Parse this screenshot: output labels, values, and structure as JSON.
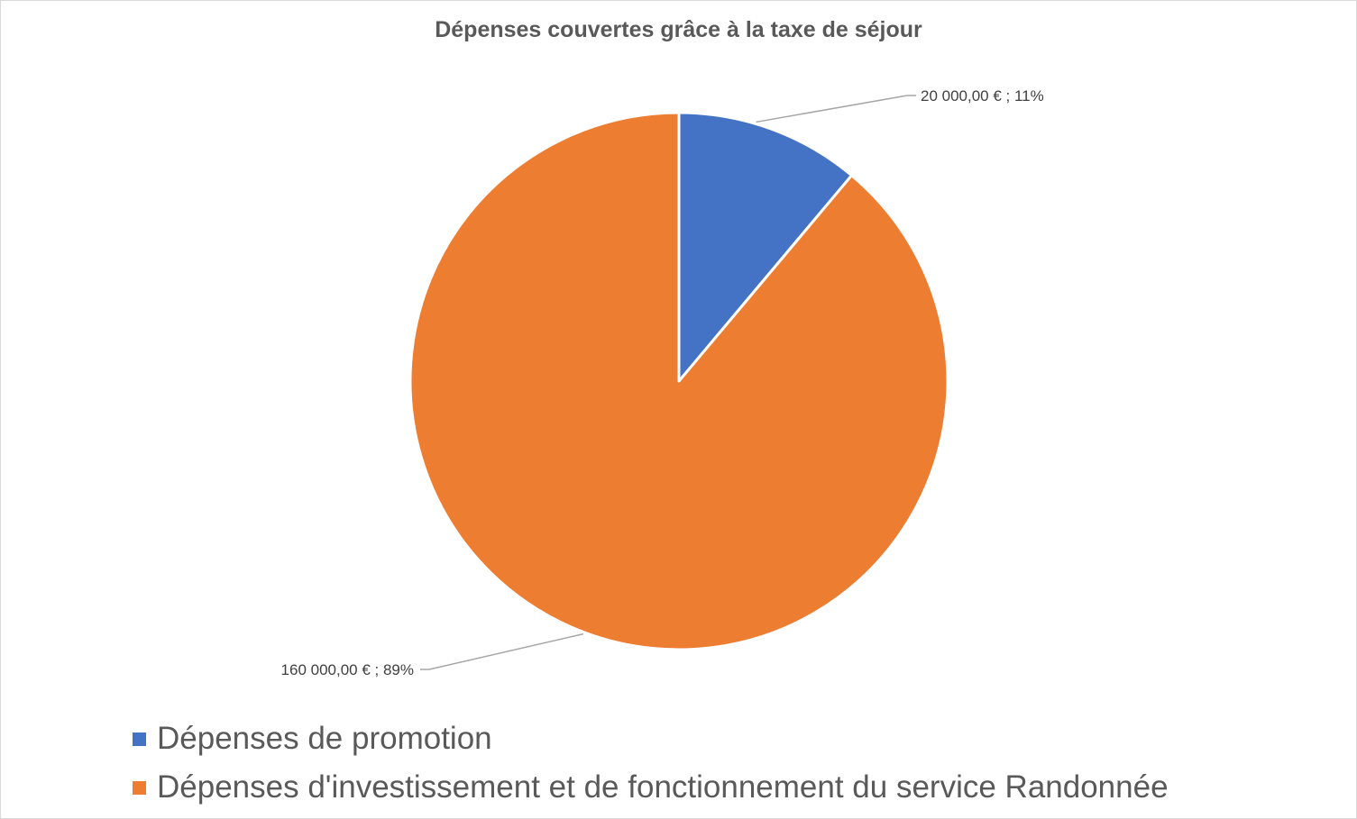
{
  "chart_data": {
    "type": "pie",
    "title": "Dépenses couvertes grâce à la taxe de séjour",
    "slices": [
      {
        "name": "Dépenses de promotion",
        "value": 20000,
        "percent": 11,
        "label": "20 000,00 € ; 11%",
        "color": "#4472C4"
      },
      {
        "name": "Dépenses d'investissement et de fonctionnement du service Randonnée",
        "value": 160000,
        "percent": 89,
        "label": "160 000,00 € ; 89%",
        "color": "#ED7D31"
      }
    ],
    "legend_position": "bottom-left",
    "leader_color": "#a6a6a6"
  }
}
